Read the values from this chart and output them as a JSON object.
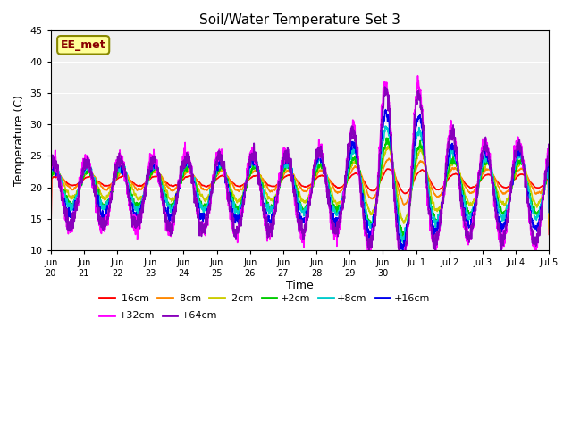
{
  "title": "Soil/Water Temperature Set 3",
  "xlabel": "Time",
  "ylabel": "Temperature (C)",
  "ylim": [
    10,
    45
  ],
  "background_color": "#ffffff",
  "plot_bg_color": "#f0f0f0",
  "series_order": [
    "-16cm",
    "-8cm",
    "-2cm",
    "+2cm",
    "+8cm",
    "+16cm",
    "+32cm",
    "+64cm"
  ],
  "series": {
    "-16cm": {
      "color": "#ff0000",
      "lw": 1.2
    },
    "-8cm": {
      "color": "#ff8800",
      "lw": 1.2
    },
    "-2cm": {
      "color": "#cccc00",
      "lw": 1.2
    },
    "+2cm": {
      "color": "#00cc00",
      "lw": 1.2
    },
    "+8cm": {
      "color": "#00cccc",
      "lw": 1.2
    },
    "+16cm": {
      "color": "#0000ee",
      "lw": 1.2
    },
    "+32cm": {
      "color": "#ff00ff",
      "lw": 1.2
    },
    "+64cm": {
      "color": "#8800bb",
      "lw": 1.2
    }
  },
  "xtick_labels": [
    "Jun\n20",
    "Jun\n21",
    "Jun\n22",
    "Jun\n23",
    "Jun\n24",
    "Jun\n25",
    "Jun\n26",
    "Jun\n27",
    "Jun\n28",
    "Jun\n29",
    "Jun\n30",
    "Jul 1",
    "Jul 2",
    "Jul 3",
    "Jul 4",
    "Jul 5"
  ],
  "xtick_positions": [
    0,
    1,
    2,
    3,
    4,
    5,
    6,
    7,
    8,
    9,
    10,
    11,
    12,
    13,
    14,
    15
  ],
  "ytick_labels": [
    "10",
    "15",
    "20",
    "25",
    "30",
    "35",
    "40",
    "45"
  ],
  "ytick_positions": [
    10,
    15,
    20,
    25,
    30,
    35,
    40,
    45
  ],
  "watermark": "EE_met",
  "watermark_color": "#880000",
  "watermark_bg": "#ffff99",
  "watermark_border": "#888800",
  "legend_ncol1": 6,
  "legend_ncol2": 2
}
